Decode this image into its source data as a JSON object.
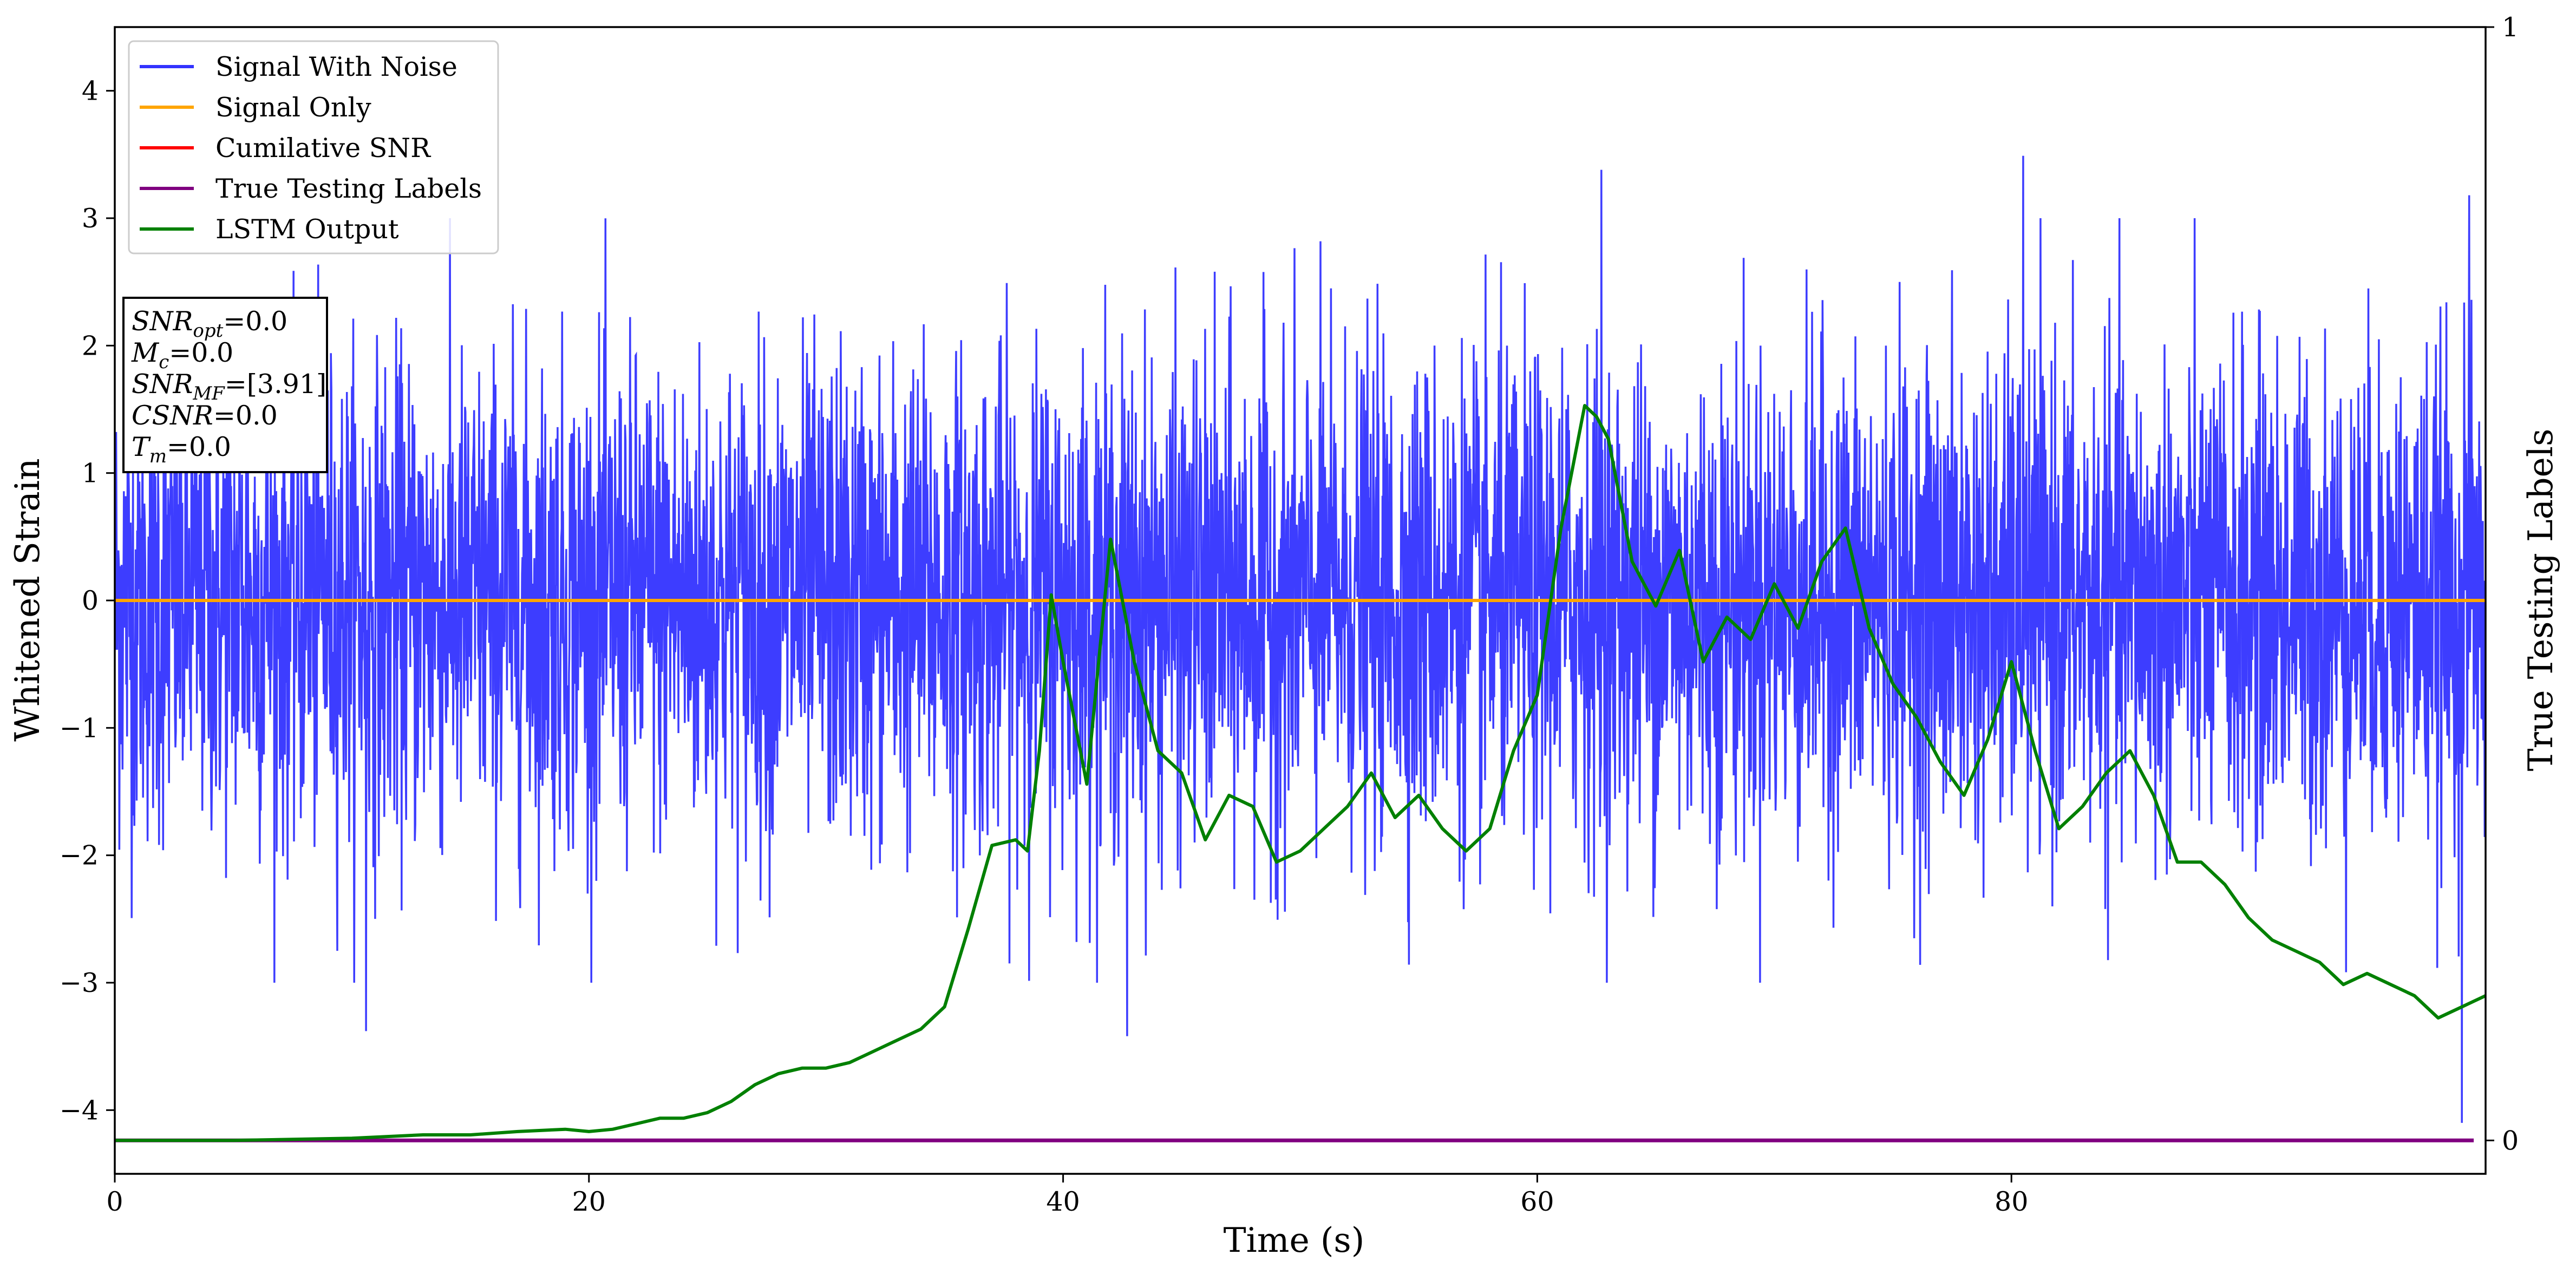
{
  "chart_data": {
    "type": "line",
    "xlabel": "Time (s)",
    "ylabel": "Whitened Strain",
    "ylabel_right": "True Testing Labels",
    "xlim": [
      0,
      100
    ],
    "ylim": [
      -4.5,
      4.5
    ],
    "ylim_right": [
      -0.03,
      1
    ],
    "x_ticks": [
      "0",
      "20",
      "40",
      "60",
      "80"
    ],
    "y_ticks": [
      "−4",
      "−3",
      "−2",
      "−1",
      "0",
      "1",
      "2",
      "3",
      "4"
    ],
    "y_right_ticks": [
      "0",
      "1"
    ],
    "grid": false,
    "legend_position": "top-left",
    "legend": [
      "Signal With Noise",
      "Signal Only",
      "Cumilative SNR",
      "True Testing Labels",
      "LSTM Output"
    ],
    "colors": {
      "signal_with_noise": "#3333ff",
      "signal_only": "#ffa500",
      "cumulative_snr": "#ff0000",
      "true_labels": "#800080",
      "lstm_output": "#008000"
    },
    "annotation": {
      "lines": [
        {
          "base": "SNR",
          "sub": "opt",
          "value": "=0.0"
        },
        {
          "base": "M",
          "sub": "c",
          "value": "=0.0"
        },
        {
          "base": "SNR",
          "sub": "MF",
          "value": "=[3.91]"
        },
        {
          "base": "CSNR",
          "sub": "",
          "value": "=0.0"
        },
        {
          "base": "T",
          "sub": "m",
          "value": "=0.0"
        }
      ]
    },
    "series": [
      {
        "name": "Signal With Noise",
        "axis": "left",
        "description_stats": {
          "mean": 0,
          "std": 1.0,
          "min": -4.1,
          "max": 3.49
        },
        "notable_peaks": [
          [
            62.7,
            3.38
          ],
          [
            80.5,
            3.49
          ],
          [
            42.7,
            -3.42
          ],
          [
            10.6,
            -3.38
          ],
          [
            99.0,
            -4.1
          ],
          [
            99.3,
            3.18
          ]
        ]
      },
      {
        "name": "Signal Only",
        "axis": "left",
        "x": [
          0,
          100
        ],
        "y": [
          0,
          0
        ]
      },
      {
        "name": "Cumilative SNR",
        "axis": "left",
        "x": [
          0,
          100
        ],
        "y": [
          0,
          0
        ]
      },
      {
        "name": "True Testing Labels",
        "axis": "right",
        "x": [
          0,
          99.5
        ],
        "y": [
          0,
          0
        ]
      },
      {
        "name": "LSTM Output",
        "axis": "right",
        "x": [
          0,
          5,
          10,
          13,
          15,
          17,
          19,
          20,
          21,
          22,
          23,
          24,
          25,
          26,
          27,
          28,
          29,
          30,
          31,
          32,
          33,
          34,
          35,
          36,
          37,
          38,
          38.5,
          39,
          39.5,
          40,
          41,
          42,
          43,
          44,
          45,
          46,
          47,
          48,
          49,
          50,
          51,
          52,
          53,
          54,
          55,
          56,
          57,
          58,
          59,
          60,
          61,
          62,
          62.5,
          63,
          64,
          65,
          66,
          67,
          68,
          69,
          70,
          71,
          72,
          73,
          74,
          75,
          76,
          77,
          78,
          79,
          80,
          81,
          82,
          83,
          84,
          85,
          86,
          87,
          88,
          89,
          90,
          91,
          92,
          93,
          94,
          95,
          96,
          97,
          98,
          99,
          100
        ],
        "y": [
          0,
          0,
          0.002,
          0.005,
          0.005,
          0.008,
          0.01,
          0.008,
          0.01,
          0.015,
          0.02,
          0.02,
          0.025,
          0.035,
          0.05,
          0.06,
          0.065,
          0.065,
          0.07,
          0.08,
          0.09,
          0.1,
          0.12,
          0.19,
          0.265,
          0.27,
          0.26,
          0.35,
          0.49,
          0.43,
          0.32,
          0.54,
          0.43,
          0.35,
          0.33,
          0.27,
          0.31,
          0.3,
          0.25,
          0.26,
          0.28,
          0.3,
          0.33,
          0.29,
          0.31,
          0.28,
          0.26,
          0.28,
          0.35,
          0.4,
          0.55,
          0.66,
          0.65,
          0.63,
          0.52,
          0.48,
          0.53,
          0.43,
          0.47,
          0.45,
          0.5,
          0.46,
          0.52,
          0.55,
          0.46,
          0.41,
          0.38,
          0.34,
          0.31,
          0.36,
          0.43,
          0.35,
          0.28,
          0.3,
          0.33,
          0.35,
          0.31,
          0.25,
          0.25,
          0.23,
          0.2,
          0.18,
          0.17,
          0.16,
          0.14,
          0.15,
          0.14,
          0.13,
          0.11,
          0.12,
          0.13
        ]
      }
    ]
  }
}
